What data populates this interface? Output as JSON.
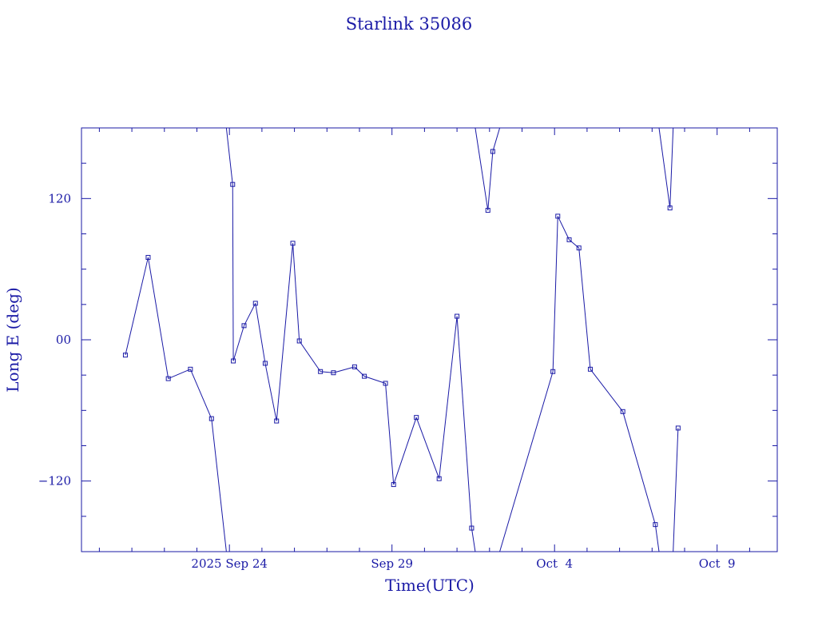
{
  "colors": {
    "ink": "#1a1aa6",
    "background": "#ffffff"
  },
  "chart_data": {
    "type": "line",
    "title": "Starlink 35086",
    "xlabel": "Time(UTC)",
    "ylabel": "Long E (deg)",
    "x_unit": "days",
    "xlim": [
      -4.55,
      16.85
    ],
    "ylim": [
      -180,
      180
    ],
    "wraps_at": [
      -180,
      180
    ],
    "markers": "square",
    "grid": false,
    "xticks": [
      {
        "value": 0,
        "label": "2025 Sep 24"
      },
      {
        "value": 5,
        "label": "Sep 29"
      },
      {
        "value": 10,
        "label": "Oct  4"
      },
      {
        "value": 15,
        "label": "Oct  9"
      }
    ],
    "yticks": [
      {
        "value": -120,
        "label": "−120"
      },
      {
        "value": 0,
        "label": "00"
      },
      {
        "value": 120,
        "label": "120"
      }
    ],
    "series": [
      {
        "points": [
          {
            "x": -3.2,
            "y": -13
          },
          {
            "x": -2.5,
            "y": 70
          },
          {
            "x": -1.88,
            "y": -33
          },
          {
            "x": -1.2,
            "y": -25
          },
          {
            "x": -0.55,
            "y": -67
          },
          {
            "x": 0.1,
            "y": 132
          },
          {
            "x": 0.12,
            "y": -18
          },
          {
            "x": 0.45,
            "y": 12
          },
          {
            "x": 0.8,
            "y": 31
          },
          {
            "x": 1.1,
            "y": -20
          },
          {
            "x": 1.45,
            "y": -69
          },
          {
            "x": 1.95,
            "y": 82
          },
          {
            "x": 2.15,
            "y": -1
          },
          {
            "x": 2.8,
            "y": -27
          },
          {
            "x": 3.2,
            "y": -28
          },
          {
            "x": 3.85,
            "y": -23
          },
          {
            "x": 4.15,
            "y": -31
          },
          {
            "x": 4.8,
            "y": -37
          },
          {
            "x": 5.05,
            "y": -123
          },
          {
            "x": 5.75,
            "y": -66
          },
          {
            "x": 6.45,
            "y": -118
          },
          {
            "x": 7.0,
            "y": 20
          },
          {
            "x": 7.45,
            "y": -160
          },
          {
            "x": 7.95,
            "y": 110
          },
          {
            "x": 8.1,
            "y": 160
          },
          {
            "x": 9.95,
            "y": -27
          },
          {
            "x": 10.1,
            "y": 105
          },
          {
            "x": 10.45,
            "y": 85
          },
          {
            "x": 10.75,
            "y": 78
          },
          {
            "x": 11.1,
            "y": -25
          },
          {
            "x": 12.1,
            "y": -61
          },
          {
            "x": 13.1,
            "y": -157
          },
          {
            "x": 13.55,
            "y": 112
          },
          {
            "x": 13.8,
            "y": -75
          }
        ]
      }
    ]
  }
}
